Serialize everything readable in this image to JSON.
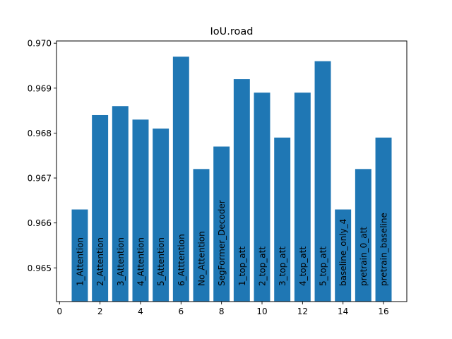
{
  "chart_data": {
    "type": "bar",
    "title": "IoU.road",
    "xlabel": "",
    "ylabel": "",
    "x": [
      1,
      2,
      3,
      4,
      5,
      6,
      7,
      8,
      9,
      10,
      11,
      12,
      13,
      14,
      15,
      16
    ],
    "labels": [
      "1_Attention",
      "2_Attention",
      "3_Attention",
      "4_Attention",
      "5_Attention",
      "6_Atttention",
      "No_Attention",
      "SegFormer_Decoder",
      "1_top_att",
      "2_top_att",
      "3_top_att",
      "4_top_att",
      "5_top_att",
      "baseline_only_4",
      "pretrain_0_att",
      "pretrain_baseline"
    ],
    "values": [
      0.9663,
      0.9684,
      0.9686,
      0.9683,
      0.9681,
      0.9697,
      0.9672,
      0.9677,
      0.9692,
      0.9689,
      0.9679,
      0.9689,
      0.9696,
      0.9663,
      0.9672,
      0.9679
    ],
    "xlim": [
      -0.15,
      17.15
    ],
    "ylim": [
      0.96425,
      0.97005
    ],
    "xticks": [
      "0",
      "2",
      "4",
      "6",
      "8",
      "10",
      "12",
      "14",
      "16"
    ],
    "yticks": [
      "0.965",
      "0.966",
      "0.967",
      "0.968",
      "0.969",
      "0.970"
    ],
    "bar_color": "#1f77b4",
    "grid": false
  }
}
